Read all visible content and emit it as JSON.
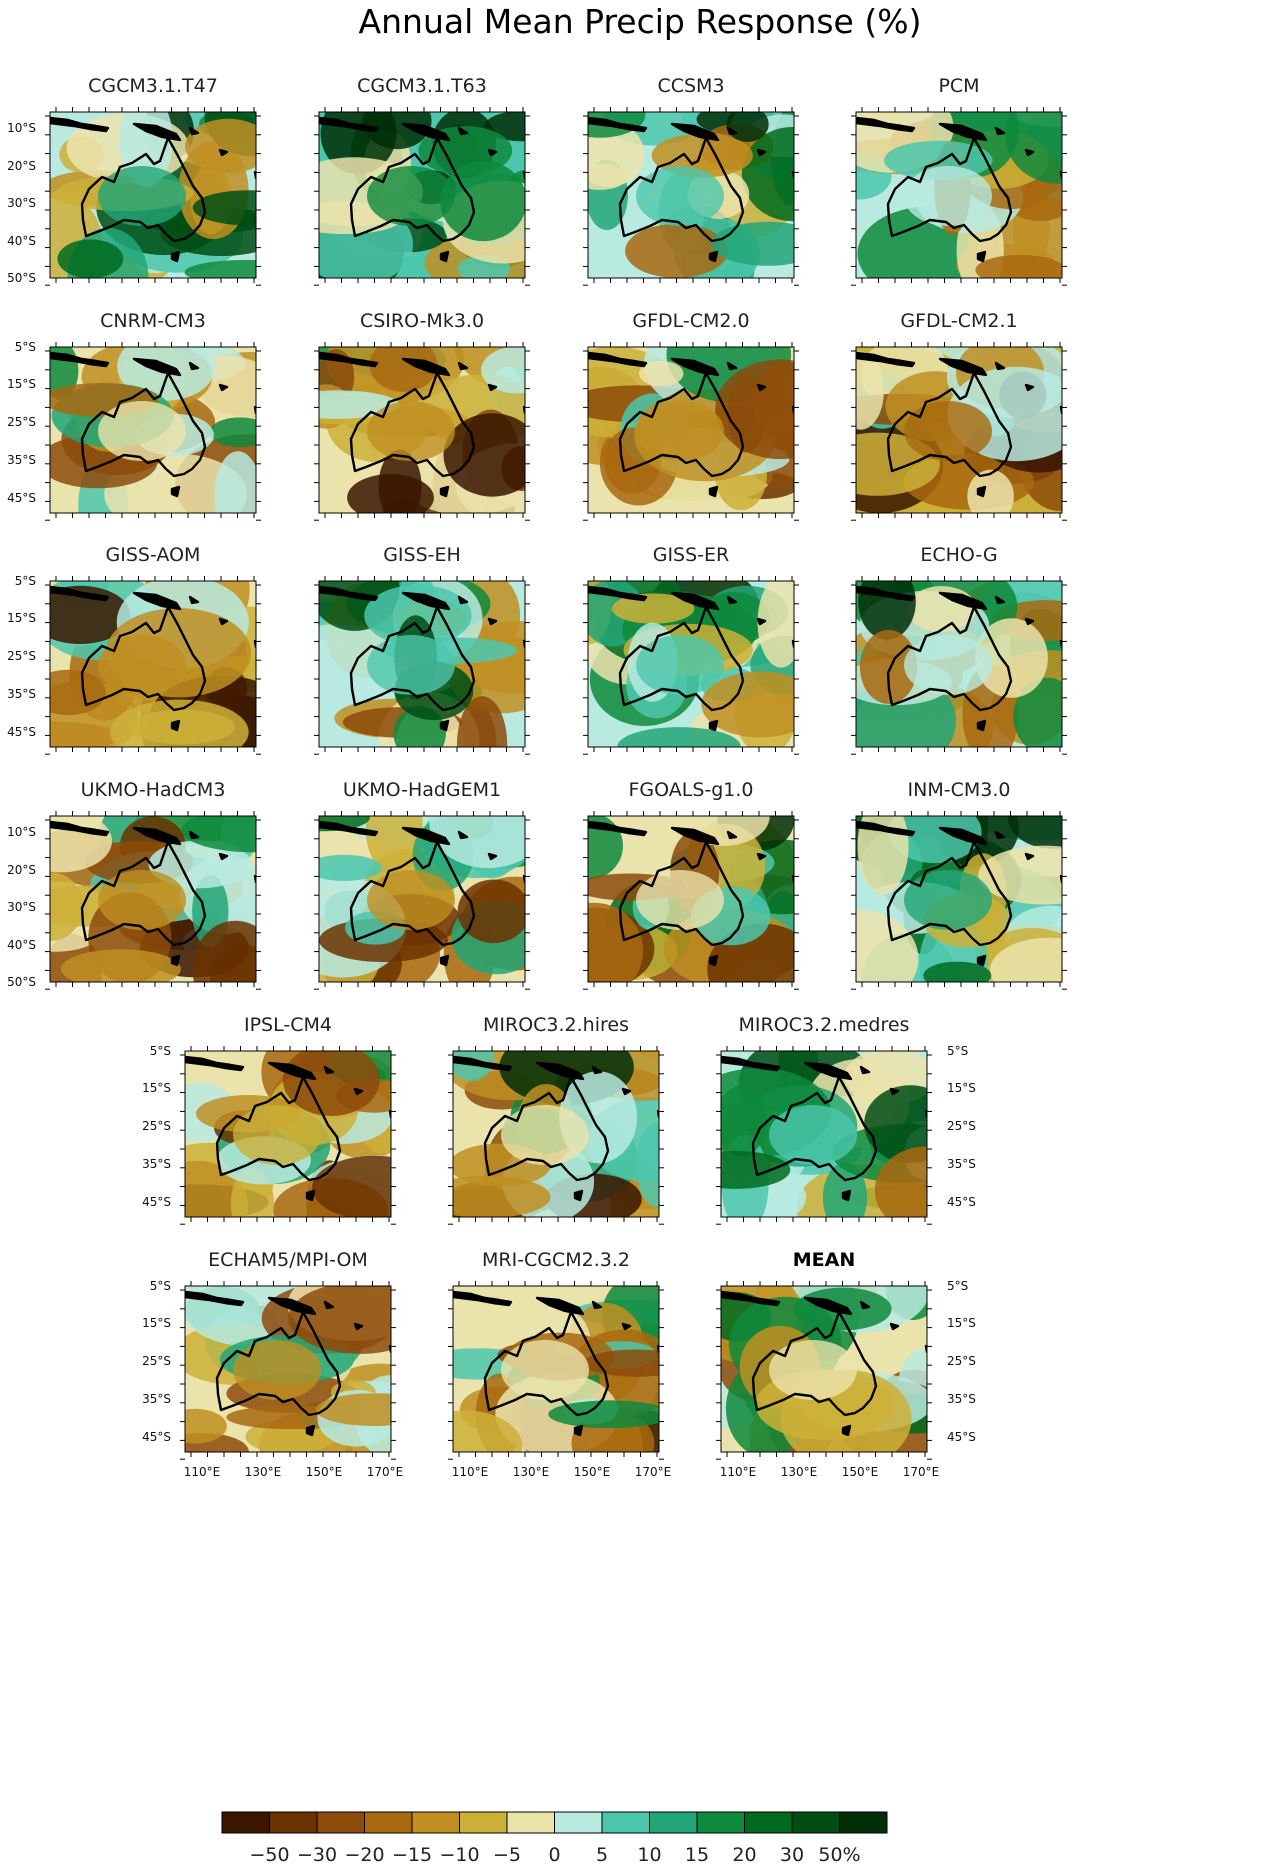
{
  "title": "Annual Mean Precip Response (%)",
  "colors": {
    "scale": [
      "#3a1600",
      "#6b3300",
      "#8c4b0a",
      "#a8690f",
      "#bf8f22",
      "#ccb038",
      "#ebe3ac",
      "#b8eae0",
      "#4cc7ad",
      "#22a678",
      "#0e8a3c",
      "#006b1f",
      "#004e14",
      "#002f08"
    ],
    "coast": "#000000",
    "frame": "#000000"
  },
  "colorbar": {
    "labels": [
      "−50",
      "−30",
      "−20",
      "−15",
      "−10",
      "−5",
      "0",
      "5",
      "10",
      "15",
      "20",
      "30",
      "50%"
    ]
  },
  "lon_ticks": [
    "110°E",
    "130°E",
    "150°E",
    "170°E"
  ],
  "lat_ticks_a": [
    "10°S",
    "20°S",
    "30°S",
    "40°S",
    "50°S"
  ],
  "lat_ticks_b": [
    "5°S",
    "15°S",
    "25°S",
    "35°S",
    "45°S"
  ],
  "panels": [
    {
      "name": "CGCM3.1.T47",
      "lat_labels": "a",
      "wet": 0.45
    },
    {
      "name": "CGCM3.1.T63",
      "lat_labels": "none",
      "wet": 0.6
    },
    {
      "name": "CCSM3",
      "lat_labels": "none",
      "wet": 0.2
    },
    {
      "name": "PCM",
      "lat_labels": "none",
      "wet": 0.05
    },
    {
      "name": "CNRM-CM3",
      "lat_labels": "b",
      "wet": -0.15
    },
    {
      "name": "CSIRO-Mk3.0",
      "lat_labels": "none",
      "wet": -0.45
    },
    {
      "name": "GFDL-CM2.0",
      "lat_labels": "none",
      "wet": -0.5
    },
    {
      "name": "GFDL-CM2.1",
      "lat_labels": "none",
      "wet": -0.6
    },
    {
      "name": "GISS-AOM",
      "lat_labels": "b",
      "wet": -0.4
    },
    {
      "name": "GISS-EH",
      "lat_labels": "none",
      "wet": 0.3
    },
    {
      "name": "GISS-ER",
      "lat_labels": "none",
      "wet": 0.25
    },
    {
      "name": "ECHO-G",
      "lat_labels": "none",
      "wet": 0.1
    },
    {
      "name": "UKMO-HadCM3",
      "lat_labels": "a",
      "wet": -0.35
    },
    {
      "name": "UKMO-HadGEM1",
      "lat_labels": "none",
      "wet": -0.35
    },
    {
      "name": "FGOALS-g1.0",
      "lat_labels": "none",
      "wet": -0.05
    },
    {
      "name": "INM-CM3.0",
      "lat_labels": "none",
      "wet": 0.35
    },
    {
      "name": "IPSL-CM4",
      "lat_labels": "b",
      "wet": -0.3
    },
    {
      "name": "MIROC3.2.hires",
      "lat_labels": "none",
      "wet": -0.1
    },
    {
      "name": "MIROC3.2.medres",
      "lat_labels": "b_right",
      "wet": 0.3
    },
    {
      "name": "ECHAM5/MPI-OM",
      "lat_labels": "b",
      "wet": -0.35
    },
    {
      "name": "MRI-CGCM2.3.2",
      "lat_labels": "none",
      "wet": -0.15
    },
    {
      "name": "MEAN",
      "lat_labels": "b_right",
      "wet": -0.05,
      "bold": true
    }
  ]
}
